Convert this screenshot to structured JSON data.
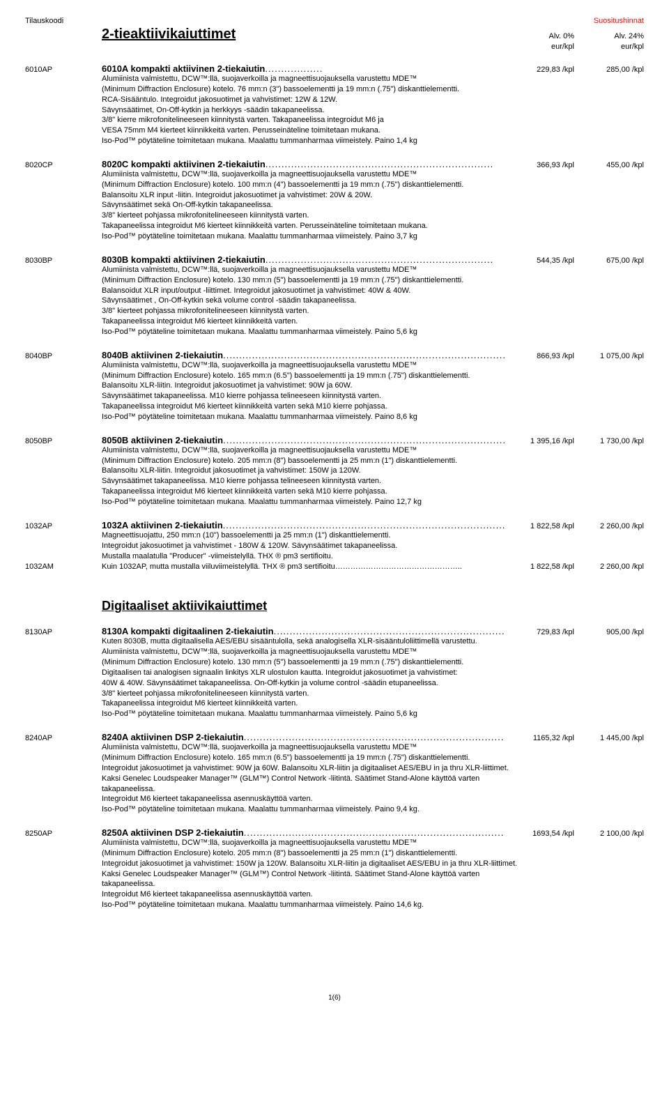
{
  "header": {
    "left": "Tilauskoodi",
    "right": "Suositushinnat",
    "vat0": "Alv. 0%",
    "vat24": "Alv. 24%",
    "unit": "eur/kpl"
  },
  "section1_title": "2-tieaktiivikaiuttimet",
  "section2_title": "Digitaaliset aktiivikaiuttimet",
  "footer": "1(6)",
  "products": [
    {
      "code": "6010AP",
      "name": "6010A kompakti aktiivinen 2-tiekaiutin",
      "dots": "..................",
      "p0": "229,83 /kpl",
      "p24": "285,00 /kpl",
      "desc": "Alumiinista valmistettu, DCW™:llä, suojaverkoilla ja magneettisuojauksella varustettu MDE™\n(Minimum Diffraction Enclosure) kotelo. 76 mm:n (3\") bassoelementti ja 19 mm:n (.75\") diskanttielementti.\nRCA-Sisääntulo. Integroidut jakosuotimet ja vahvistimet: 12W & 12W.\nSävynsäätimet, On-Off-kytkin ja herkkyys -säädin takapaneelissa.\n3/8\" kierre mikrofonitelineeseen kiinnitystä varten. Takapaneelissa integroidut M6 ja\nVESA 75mm M4 kierteet kiinnikkeitä varten. Perusseinäteline toimitetaan mukana.\nIso-Pod™ pöytäteline toimitetaan mukana. Maalattu tummanharmaa viimeistely. Paino 1,4 kg"
    },
    {
      "code": "8020CP",
      "name": "8020C  kompakti aktiivinen 2-tiekaiutin",
      "dots": ".......................................................................",
      "p0": "366,93 /kpl",
      "p24": "455,00 /kpl",
      "desc": "Alumiinista valmistettu, DCW™:llä, suojaverkoilla ja magneettisuojauksella varustettu MDE™\n(Minimum Diffraction Enclosure) kotelo. 100 mm:n (4\") bassoelementti ja 19 mm:n (.75\") diskanttielementti.\nBalansoitu XLR input -liitin. Integroidut jakosuotimet ja vahvistimet: 20W & 20W.\nSävynsäätimet sekä On-Off-kytkin takapaneelissa.\n3/8\" kierteet pohjassa mikrofonitelineeseen kiinnitystä varten.\nTakapaneelissa integroidut M6 kierteet kiinnikkeitä varten. Perusseinäteline toimitetaan mukana.\nIso-Pod™ pöytäteline toimitetaan mukana. Maalattu tummanharmaa viimeistely. Paino 3,7 kg"
    },
    {
      "code": "8030BP",
      "name": "8030B  kompakti aktiivinen 2-tiekaiutin",
      "dots": ".......................................................................",
      "p0": "544,35 /kpl",
      "p24": "675,00 /kpl",
      "desc": "Alumiinista valmistettu, DCW™:llä, suojaverkoilla ja magneettisuojauksella varustettu MDE™\n(Minimum Diffraction Enclosure) kotelo. 130 mm:n (5\") bassoelementti ja 19 mm:n (.75\") diskanttielementti.\nBalansoidut XLR input/output -liittimet. Integroidut jakosuotimet ja vahvistimet: 40W & 40W.\nSävynsäätimet , On-Off-kytkin sekä volume control -säädin takapaneelissa.\n3/8\" kierteet pohjassa mikrofonitelineeseen kiinnitystä varten.\nTakapaneelissa integroidut M6 kierteet kiinnikkeitä varten.\nIso-Pod™ pöytäteline toimitetaan mukana. Maalattu tummanharmaa viimeistely. Paino 5,6 kg"
    },
    {
      "code": "8040BP",
      "name": "8040B  aktiivinen 2-tiekaiutin",
      "dots": "...............................................................................................",
      "p0": "866,93 /kpl",
      "p24": "1 075,00 /kpl",
      "desc": "Alumiinista valmistettu, DCW™:llä, suojaverkoilla ja magneettisuojauksella varustettu MDE™\n(Minimum Diffraction Enclosure) kotelo. 165 mm:n (6.5\") bassoelementti ja 19 mm:n (.75\") diskanttielementti.\nBalansoitu XLR-liitin. Integroidut jakosuotimet ja vahvistimet: 90W ja 60W.\nSävynsäätimet takapaneelissa. M10 kierre pohjassa telineeseen kiinnitystä varten.\nTakapaneelissa integroidut M6 kierteet kiinnikkeitä varten sekä M10 kierre pohjassa.\nIso-Pod™ pöytäteline toimitetaan mukana. Maalattu tummanharmaa viimeistely. Paino 8,6 kg"
    },
    {
      "code": "8050BP",
      "name": "8050B  aktiivinen 2-tiekaiutin",
      "dots": "...............................................................................................",
      "p0": "1 395,16 /kpl",
      "p24": "1 730,00 /kpl",
      "desc": "Alumiinista valmistettu, DCW™:llä, suojaverkoilla ja magneettisuojauksella varustettu MDE™\n(Minimum Diffraction Enclosure) kotelo. 205 mm:n (8\") bassoelementti ja 25 mm:n (1\") diskanttielementti.\nBalansoitu XLR-liitin. Integroidut jakosuotimet ja vahvistimet: 150W ja 120W.\nSävynsäätimet takapaneelissa. M10 kierre pohjassa telineeseen kiinnitystä varten.\nTakapaneelissa integroidut M6 kierteet kiinnikkeitä varten sekä M10 kierre pohjassa.\nIso-Pod™ pöytäteline toimitetaan mukana. Maalattu tummanharmaa viimeistely. Paino 12,7 kg"
    },
    {
      "code": "1032AP",
      "name": "1032A  aktiivinen 2-tiekaiutin",
      "dots": "...............................................................................................",
      "p0": "1 822,58 /kpl",
      "p24": "2 260,00 /kpl",
      "desc": "Magneettisuojattu, 250 mm:n (10\") bassoelementti ja 25 mm:n (1\") diskanttielementti.\nIntegroidut jakosuotimet ja vahvistimet - 180W & 120W. Sävynsäätimet takapaneelissa.\nMustalla maalatulla \"Producer\" -viimeistelyllä. THX ® pm3 sertifioitu.",
      "variant": {
        "code": "1032AM",
        "name": "Kuin 1032AP, mutta mustalla viiluviimeistelyllä. THX ® pm3 sertifioitu…………………………………………..",
        "p0": "1 822,58 /kpl",
        "p24": "2 260,00 /kpl"
      }
    }
  ],
  "digital": [
    {
      "code": "8130AP",
      "name": "8130A  kompakti digitaalinen 2-tiekaiutin",
      "dots": "........................................................................",
      "p0": "729,83 /kpl",
      "p24": "905,00 /kpl",
      "desc": "Kuten 8030B, mutta digitaalisella AES/EBU sisääntulolla, sekä analogisella XLR-sisääntuloliittimellä varustettu.\nAlumiinista valmistettu, DCW™:llä, suojaverkoilla ja magneettisuojauksella varustettu MDE™\n(Minimum Diffraction Enclosure) kotelo. 130 mm:n (5\") bassoelementti ja 19 mm:n (.75\") diskanttielementti.\nDigitaalisen tai analogisen signaalin linkitys XLR ulostulon kautta. Integroidut jakosuotimet ja vahvistimet:\n40W & 40W. Sävynsäätimet takapaneelissa. On-Off-kytkin ja volume control -säädin etupaneelissa.\n3/8\" kierteet pohjassa mikrofonitelineeseen kiinnitystä varten.\nTakapaneelissa integroidut M6 kierteet kiinnikkeitä varten.\nIso-Pod™ pöytäteline toimitetaan mukana. Maalattu tummanharmaa viimeistely. Paino 5,6 kg"
    },
    {
      "code": "8240AP",
      "name": "8240A aktiivinen DSP 2-tiekaiutin",
      "dots": ".......................................................................................",
      "p0": "1165,32 /kpl",
      "p24": "1 445,00 /kpl",
      "desc": "Alumiinista valmistettu, DCW™:llä, suojaverkoilla ja magneettisuojauksella varustettu MDE™\n(Minimum Diffraction Enclosure) kotelo. 165 mm:n (6.5\") bassoelementti ja 19 mm:n (.75\") diskanttielementti.\nIntegroidut jakosuotimet ja vahvistimet: 90W ja 60W. Balansoitu XLR-liitin ja digitaaliset AES/EBU in ja thru XLR-liittimet.\nKaksi Genelec Loudspeaker Manager™ (GLM™)  Control Network -liitintä. Säätimet Stand-Alone käyttöä varten takapaneelissa.\nIntegroidut M6 kierteet takapaneelissa asennuskäyttöä varten.\nIso-Pod™ pöytäteline toimitetaan mukana. Maalattu tummanharmaa viimeistely. Paino 9,4 kg."
    },
    {
      "code": "8250AP",
      "name": "8250A aktiivinen DSP 2-tiekaiutin",
      "dots": ".......................................................................................",
      "p0": "1693,54 /kpl",
      "p24": "2 100,00 /kpl",
      "desc": "Alumiinista valmistettu, DCW™:llä, suojaverkoilla ja magneettisuojauksella varustettu MDE™\n(Minimum Diffraction Enclosure) kotelo. 205 mm:n (8\") bassoelementti ja 25 mm:n (1\") diskanttielementti.\nIntegroidut jakosuotimet ja vahvistimet: 150W ja 120W. Balansoitu XLR-liitin ja digitaaliset AES/EBU in ja thru XLR-liittimet.\nKaksi Genelec Loudspeaker Manager™ (GLM™)  Control Network -liitintä. Säätimet Stand-Alone käyttöä varten takapaneelissa.\nIntegroidut M6 kierteet takapaneelissa asennuskäyttöä varten.\nIso-Pod™ pöytäteline toimitetaan mukana. Maalattu tummanharmaa viimeistely. Paino 14,6 kg."
    }
  ]
}
